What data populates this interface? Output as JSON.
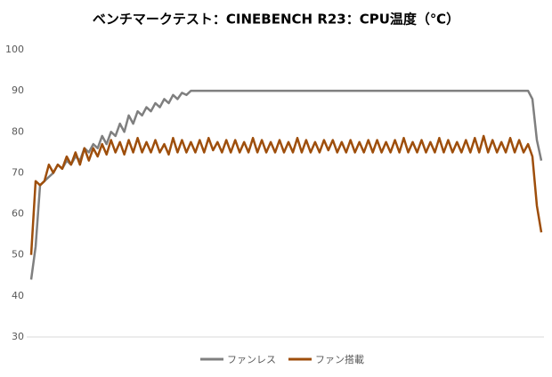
{
  "chart_data": {
    "type": "line",
    "title": "ベンチマークテスト：CINEBENCH R23：CPU温度（℃）",
    "ylim": [
      30,
      100
    ],
    "yticks": [
      30,
      40,
      50,
      60,
      70,
      80,
      90,
      100
    ],
    "legend": "bottom",
    "series": [
      {
        "name": "ファンレス",
        "color": "#7f7f7f",
        "values": [
          44,
          52,
          67,
          68,
          69,
          70,
          72,
          71,
          73,
          72,
          74,
          73,
          76,
          75,
          77,
          76,
          79,
          77,
          80,
          79,
          82,
          80,
          84,
          82,
          85,
          84,
          86,
          85,
          87,
          86,
          88,
          87,
          89,
          88,
          89.5,
          89,
          90,
          90,
          90,
          90,
          90,
          90,
          90,
          90,
          90,
          90,
          90,
          90,
          90,
          90,
          90,
          90,
          90,
          90,
          90,
          90,
          90,
          90,
          90,
          90,
          90,
          90,
          90,
          90,
          90,
          90,
          90,
          90,
          90,
          90,
          90,
          90,
          90,
          90,
          90,
          90,
          90,
          90,
          90,
          90,
          90,
          90,
          90,
          90,
          90,
          90,
          90,
          90,
          90,
          90,
          90,
          90,
          90,
          90,
          90,
          90,
          90,
          90,
          90,
          90,
          90,
          90,
          90,
          90,
          90,
          90,
          90,
          90,
          90,
          90,
          90,
          90,
          90,
          88,
          78,
          73
        ]
      },
      {
        "name": "ファン搭載",
        "color": "#9e4e0b",
        "values": [
          50,
          68,
          67,
          68,
          72,
          70,
          72,
          71,
          74,
          72,
          75,
          72,
          76,
          73,
          76,
          74,
          77,
          74.5,
          78,
          75,
          77.5,
          74.5,
          78,
          75,
          78.5,
          75,
          77.5,
          75,
          78,
          75,
          77,
          74.5,
          78.5,
          75,
          78,
          75,
          77.5,
          75,
          78,
          75,
          78.5,
          75.5,
          77.5,
          75,
          78,
          75,
          78,
          75,
          77.5,
          75,
          78.5,
          75,
          78,
          75,
          77.5,
          75,
          78,
          75,
          77.5,
          75,
          78.5,
          75,
          78,
          75,
          77.5,
          75,
          78,
          75.5,
          78,
          75,
          77.5,
          75,
          78,
          75,
          77.5,
          75,
          78,
          75,
          78,
          75,
          77.5,
          75,
          78,
          75,
          78.5,
          75,
          77.5,
          75,
          78,
          75,
          77.5,
          75,
          78.5,
          75,
          78,
          75,
          77.5,
          75,
          78,
          75,
          78.5,
          75,
          79,
          75,
          78,
          75,
          77.5,
          75,
          78.5,
          75,
          78,
          75,
          77,
          74,
          62,
          55.5
        ]
      }
    ]
  }
}
